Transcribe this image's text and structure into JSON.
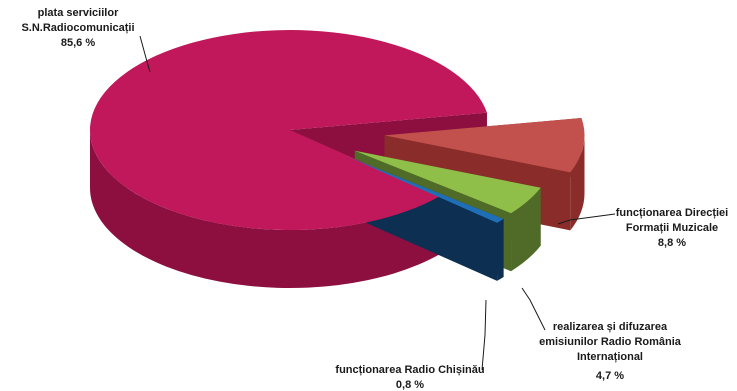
{
  "chart_data": {
    "type": "pie",
    "title": "",
    "legend": "none",
    "slices": [
      {
        "name": "plata serviciilor S.N.Radiocomunicații",
        "label_lines": [
          "plata serviciilor",
          "S.N.Radiocomunicații"
        ],
        "value_label": "85,6 %",
        "value": 85.6,
        "color": "#c0185a",
        "side": "#8c0f40"
      },
      {
        "name": "funcționarea Direcției Formații Muzicale",
        "label_lines": [
          "funcționarea Direcției",
          "Formații Muzicale"
        ],
        "value_label": "8,8 %",
        "value": 8.8,
        "color": "#c2504d",
        "side": "#8a2d2a"
      },
      {
        "name": "realizarea și difuzarea emisiunilor Radio România Internațional",
        "label_lines": [
          "realizarea și difuzarea",
          "emisiunilor Radio România",
          "Internațional"
        ],
        "value_label": "4,7 %",
        "value": 4.7,
        "color": "#8fbf48",
        "side": "#4f6b27"
      },
      {
        "name": "funcționarea Radio Chișinău",
        "label_lines": [
          "funcționarea Radio Chișinău"
        ],
        "value_label": "0,8 %",
        "value": 0.8,
        "color": "#1f6fb8",
        "side": "#0d2f52"
      }
    ]
  }
}
